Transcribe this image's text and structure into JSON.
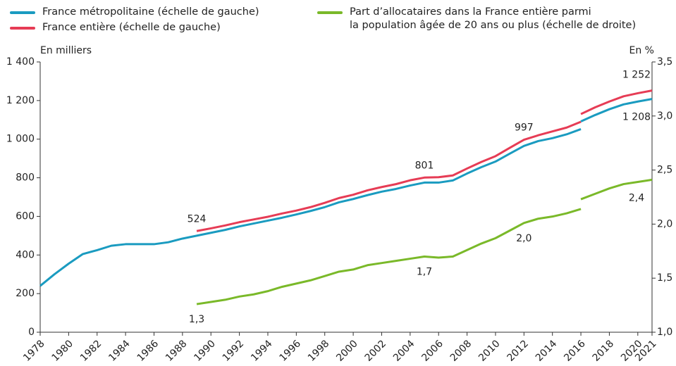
{
  "chart_data": {
    "type": "line",
    "y_label": "En milliers",
    "y2_label": "En %",
    "x": [
      1978,
      1979,
      1980,
      1981,
      1982,
      1983,
      1984,
      1985,
      1986,
      1987,
      1988,
      1989,
      1990,
      1991,
      1992,
      1993,
      1994,
      1995,
      1996,
      1997,
      1998,
      1999,
      2000,
      2001,
      2002,
      2003,
      2004,
      2005,
      2006,
      2007,
      2008,
      2009,
      2010,
      2011,
      2012,
      2013,
      2014,
      2015,
      2016,
      2016,
      2016,
      2017,
      2018,
      2019,
      2020,
      2021
    ],
    "series": [
      {
        "name": "France métropolitaine (échelle de gauche)",
        "color": "#1a9bc0",
        "values": [
          240,
          300,
          355,
          405,
          425,
          448,
          456,
          456,
          456,
          466,
          485,
          500,
          515,
          530,
          548,
          563,
          578,
          593,
          610,
          628,
          648,
          673,
          690,
          710,
          728,
          742,
          760,
          775,
          775,
          786,
          822,
          855,
          884,
          925,
          965,
          990,
          1005,
          1025,
          1052,
          null,
          1092,
          1125,
          1155,
          1180,
          1195,
          1208
        ],
        "value_labels": [
          null,
          null,
          null,
          null,
          null,
          null,
          null,
          null,
          null,
          null,
          null,
          null,
          null,
          null,
          null,
          null,
          null,
          null,
          null,
          null,
          null,
          null,
          null,
          null,
          null,
          null,
          null,
          null,
          null,
          null,
          null,
          null,
          null,
          null,
          null,
          null,
          null,
          null,
          null,
          null,
          null,
          null,
          null,
          null,
          null,
          "1 208"
        ]
      },
      {
        "name": "France entière (échelle de gauche)",
        "color": "#e63c55",
        "values": [
          null,
          null,
          null,
          null,
          null,
          null,
          null,
          null,
          null,
          null,
          null,
          524,
          538,
          553,
          570,
          584,
          598,
          615,
          630,
          648,
          670,
          695,
          712,
          735,
          752,
          767,
          787,
          801,
          803,
          812,
          848,
          882,
          912,
          955,
          997,
          1020,
          1040,
          1060,
          1090,
          null,
          1130,
          1165,
          1195,
          1222,
          1238,
          1252
        ],
        "value_labels": [
          null,
          null,
          null,
          null,
          null,
          null,
          null,
          null,
          null,
          null,
          null,
          "524",
          null,
          null,
          null,
          null,
          null,
          null,
          null,
          null,
          null,
          null,
          null,
          null,
          null,
          null,
          null,
          "801",
          null,
          null,
          null,
          null,
          null,
          null,
          "997",
          null,
          null,
          null,
          null,
          null,
          null,
          null,
          null,
          null,
          null,
          "1 252"
        ]
      },
      {
        "name": "Part d’allocataires dans la France entière parmi\nla population âgée de 20 ans ou plus (échelle de droite)",
        "color": "#7ab929",
        "axis": "y2",
        "values": [
          null,
          null,
          null,
          null,
          null,
          null,
          null,
          null,
          null,
          null,
          null,
          1.26,
          1.28,
          1.3,
          1.33,
          1.35,
          1.38,
          1.42,
          1.45,
          1.48,
          1.52,
          1.56,
          1.58,
          1.62,
          1.64,
          1.66,
          1.68,
          1.7,
          1.69,
          1.7,
          1.76,
          1.82,
          1.87,
          1.94,
          2.01,
          2.05,
          2.07,
          2.1,
          2.14,
          null,
          2.23,
          2.28,
          2.33,
          2.37,
          2.39,
          2.41
        ],
        "value_labels": [
          null,
          null,
          null,
          null,
          null,
          null,
          null,
          null,
          null,
          null,
          null,
          "1,3",
          null,
          null,
          null,
          null,
          null,
          null,
          null,
          null,
          null,
          null,
          null,
          null,
          null,
          null,
          null,
          "1,7",
          null,
          null,
          null,
          null,
          null,
          null,
          "2,0",
          null,
          null,
          null,
          null,
          null,
          null,
          null,
          null,
          null,
          null,
          "2,4"
        ]
      }
    ],
    "xlim": [
      1978,
      2021
    ],
    "xticks": [
      1978,
      1980,
      1982,
      1984,
      1986,
      1988,
      1990,
      1992,
      1994,
      1996,
      1998,
      2000,
      2002,
      2004,
      2006,
      2008,
      2010,
      2012,
      2014,
      2016,
      2018,
      2020,
      2021
    ],
    "ylim": [
      0,
      1400
    ],
    "yticks": [
      0,
      200,
      400,
      600,
      800,
      {
        "value": 1000,
        "label": "1 000"
      },
      {
        "value": 1200,
        "label": "1 200"
      },
      {
        "value": 1400,
        "label": "1 400"
      }
    ],
    "y2lim": [
      1.0,
      3.5
    ],
    "y2ticks": [
      {
        "value": 1.0,
        "label": "1,0"
      },
      {
        "value": 1.5,
        "label": "1,5"
      },
      {
        "value": 2.0,
        "label": "2,0"
      },
      {
        "value": 2.5,
        "label": "2,5"
      },
      {
        "value": 3.0,
        "label": "3,0"
      },
      {
        "value": 3.5,
        "label": "3,5"
      }
    ]
  }
}
